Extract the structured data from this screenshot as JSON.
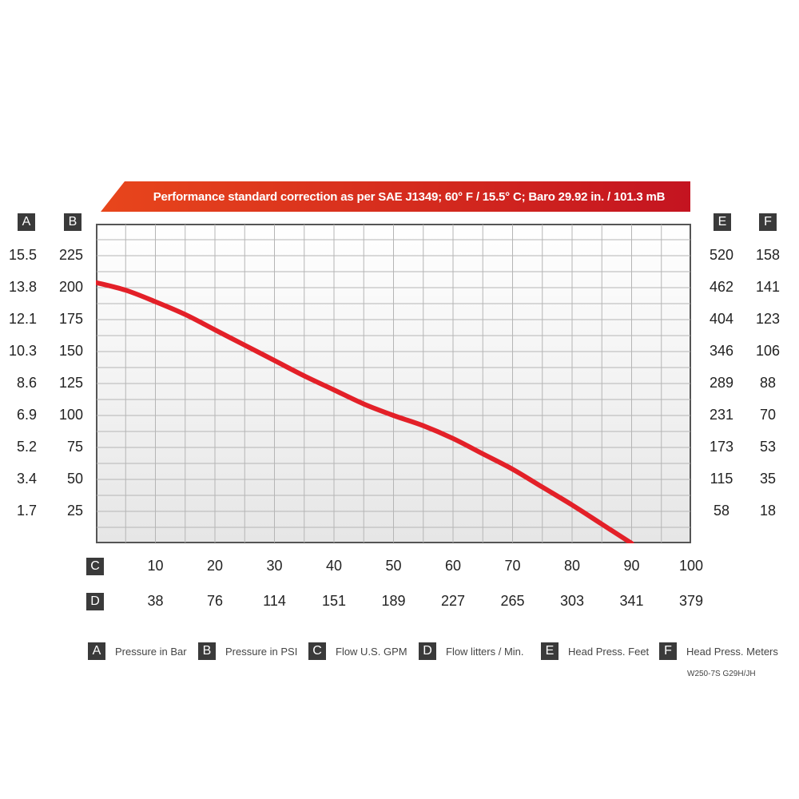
{
  "banner": {
    "text": "Performance standard correction as per SAE J1349;  60° F / 15.5° C;  Baro 29.92 in. / 101.3 mB",
    "colors": [
      "#e8461c",
      "#c41420"
    ]
  },
  "axis_badges": {
    "A": "A",
    "B": "B",
    "C": "C",
    "D": "D",
    "E": "E",
    "F": "F"
  },
  "colors": {
    "curve": "#e32028",
    "badge": "#3a3a3a",
    "grid": "#b5b5b5"
  },
  "legend": [
    {
      "letter": "A",
      "text": "Pressure in Bar"
    },
    {
      "letter": "B",
      "text": "Pressure in PSI"
    },
    {
      "letter": "C",
      "text": "Flow U.S. GPM"
    },
    {
      "letter": "D",
      "text": "Flow litters / Min."
    },
    {
      "letter": "E",
      "text": "Head Press. Feet"
    },
    {
      "letter": "F",
      "text": "Head Press. Meters"
    }
  ],
  "model": "W250-7S G29H/JH",
  "chart_data": {
    "type": "line",
    "title": "Performance standard correction as per SAE J1349;  60° F / 15.5° C;  Baro 29.92 in. / 101.3 mB",
    "xlabel": "Flow U.S. GPM",
    "ylabel": "Pressure in PSI",
    "xlim": [
      0,
      100
    ],
    "ylim": [
      0,
      250
    ],
    "grid": true,
    "x_ticks_gpm": [
      "10",
      "20",
      "30",
      "40",
      "50",
      "60",
      "70",
      "80",
      "90",
      "100"
    ],
    "x_ticks_lpm": [
      "38",
      "76",
      "114",
      "151",
      "189",
      "227",
      "265",
      "303",
      "341",
      "379"
    ],
    "y_ticks_psi": [
      "225",
      "200",
      "175",
      "150",
      "125",
      "100",
      "75",
      "50",
      "25"
    ],
    "y_ticks_bar": [
      "15.5",
      "13.8",
      "12.1",
      "10.3",
      "8.6",
      "6.9",
      "5.2",
      "3.4",
      "1.7"
    ],
    "y_ticks_feet": [
      "520",
      "462",
      "404",
      "346",
      "289",
      "231",
      "173",
      "115",
      "58"
    ],
    "y_ticks_meters": [
      "158",
      "141",
      "123",
      "106",
      "88",
      "70",
      "53",
      "35",
      "18"
    ],
    "series": [
      {
        "x": [
          0,
          5,
          10,
          15,
          20,
          25,
          30,
          35,
          40,
          45,
          50,
          55,
          60,
          65,
          70,
          75,
          80,
          85,
          90
        ],
        "values": [
          204,
          198,
          189,
          179,
          167,
          155,
          143,
          131,
          120,
          109,
          100,
          92,
          82,
          70,
          58,
          44,
          30,
          15,
          0
        ]
      }
    ]
  }
}
